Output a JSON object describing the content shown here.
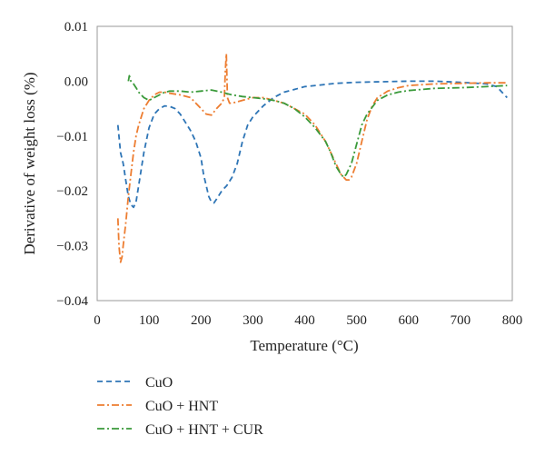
{
  "chart_data": {
    "type": "line",
    "xlabel": "Temperature (°C)",
    "ylabel": "Derivative of weight loss (%)",
    "xlim": [
      0,
      800
    ],
    "ylim": [
      -0.04,
      0.01
    ],
    "xticks": [
      0,
      100,
      200,
      300,
      400,
      500,
      600,
      700,
      800
    ],
    "yticks": [
      -0.04,
      -0.03,
      -0.02,
      -0.01,
      0.0,
      0.01
    ],
    "ytick_labels": [
      "−0.04",
      "−0.03",
      "−0.02",
      "−0.01",
      "0.00",
      "0.01"
    ],
    "grid": false,
    "legend_position": "bottom",
    "series": [
      {
        "name": "CuO",
        "color": "#2e75b6",
        "dash": "dashed",
        "x": [
          40,
          45,
          50,
          55,
          60,
          65,
          70,
          75,
          80,
          90,
          100,
          110,
          120,
          130,
          140,
          150,
          160,
          170,
          180,
          190,
          200,
          205,
          210,
          215,
          220,
          225,
          230,
          240,
          250,
          260,
          270,
          280,
          290,
          300,
          320,
          340,
          360,
          380,
          400,
          430,
          460,
          500,
          550,
          600,
          650,
          700,
          750,
          770,
          780,
          790
        ],
        "y": [
          -0.008,
          -0.013,
          -0.015,
          -0.018,
          -0.021,
          -0.0225,
          -0.023,
          -0.022,
          -0.019,
          -0.013,
          -0.0085,
          -0.006,
          -0.005,
          -0.0045,
          -0.0046,
          -0.005,
          -0.006,
          -0.0075,
          -0.009,
          -0.011,
          -0.014,
          -0.017,
          -0.019,
          -0.021,
          -0.022,
          -0.0222,
          -0.0215,
          -0.02,
          -0.019,
          -0.0175,
          -0.015,
          -0.011,
          -0.008,
          -0.0065,
          -0.0045,
          -0.003,
          -0.002,
          -0.0015,
          -0.001,
          -0.0007,
          -0.0004,
          -0.0002,
          -0.0001,
          0.0,
          0.0,
          -0.0002,
          -0.0005,
          -0.001,
          -0.002,
          -0.003
        ]
      },
      {
        "name": "CuO + HNT",
        "color": "#ed7d31",
        "dash": "dashdot",
        "x": [
          40,
          42,
          45,
          48,
          50,
          55,
          60,
          65,
          70,
          75,
          80,
          90,
          100,
          110,
          120,
          130,
          140,
          160,
          180,
          200,
          210,
          220,
          230,
          240,
          245,
          247,
          249,
          251,
          255,
          260,
          280,
          300,
          320,
          340,
          360,
          380,
          400,
          420,
          440,
          450,
          460,
          470,
          480,
          485,
          490,
          500,
          510,
          520,
          530,
          540,
          560,
          580,
          600,
          650,
          700,
          750,
          790
        ],
        "y": [
          -0.025,
          -0.03,
          -0.033,
          -0.032,
          -0.03,
          -0.026,
          -0.021,
          -0.017,
          -0.013,
          -0.01,
          -0.008,
          -0.005,
          -0.0035,
          -0.0025,
          -0.002,
          -0.002,
          -0.0022,
          -0.0025,
          -0.003,
          -0.005,
          -0.006,
          -0.0062,
          -0.005,
          -0.004,
          -0.003,
          0.002,
          0.005,
          -0.003,
          -0.004,
          -0.004,
          -0.0035,
          -0.003,
          -0.003,
          -0.0035,
          -0.004,
          -0.005,
          -0.006,
          -0.008,
          -0.011,
          -0.013,
          -0.015,
          -0.017,
          -0.018,
          -0.018,
          -0.0175,
          -0.015,
          -0.011,
          -0.007,
          -0.0045,
          -0.003,
          -0.0018,
          -0.0012,
          -0.0008,
          -0.0005,
          -0.0004,
          -0.0003,
          -0.0003
        ]
      },
      {
        "name": "CuO + HNT + CUR",
        "color": "#3a9a3a",
        "dash": "dashdot",
        "x": [
          60,
          62,
          65,
          70,
          75,
          80,
          90,
          100,
          110,
          120,
          130,
          140,
          160,
          180,
          200,
          220,
          240,
          260,
          280,
          300,
          320,
          340,
          360,
          380,
          400,
          420,
          440,
          450,
          460,
          470,
          475,
          480,
          490,
          500,
          510,
          520,
          540,
          560,
          580,
          600,
          650,
          700,
          750,
          790
        ],
        "y": [
          0.0,
          0.001,
          0.0,
          -0.0005,
          -0.0012,
          -0.002,
          -0.003,
          -0.0035,
          -0.003,
          -0.0025,
          -0.002,
          -0.0018,
          -0.0018,
          -0.002,
          -0.0018,
          -0.0016,
          -0.002,
          -0.0025,
          -0.0028,
          -0.003,
          -0.0032,
          -0.0035,
          -0.004,
          -0.005,
          -0.0065,
          -0.0085,
          -0.011,
          -0.013,
          -0.0155,
          -0.017,
          -0.0175,
          -0.017,
          -0.015,
          -0.0115,
          -0.008,
          -0.006,
          -0.0035,
          -0.0025,
          -0.002,
          -0.0017,
          -0.0013,
          -0.0012,
          -0.001,
          -0.0008
        ]
      }
    ]
  }
}
